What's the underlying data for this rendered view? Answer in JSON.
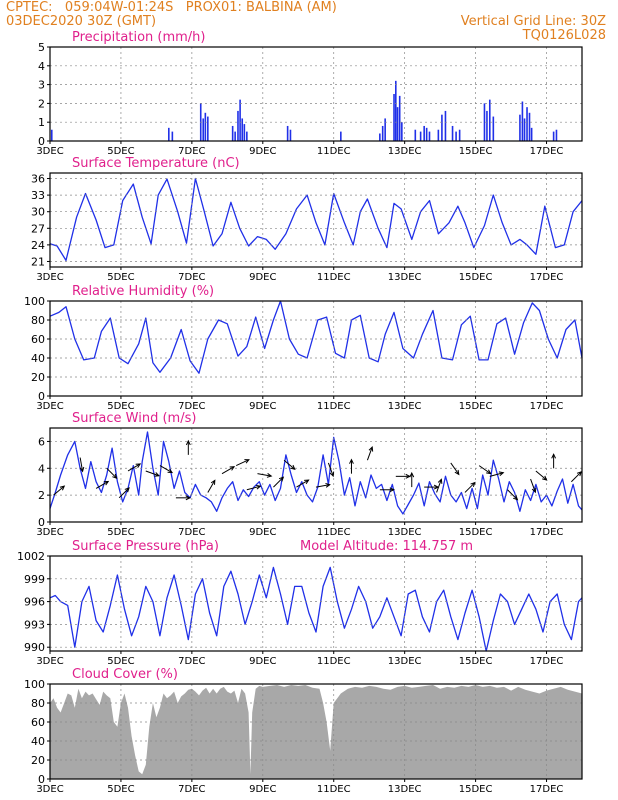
{
  "header": {
    "line1_left": "CPTEC:   059:04W-01:24S   PROX01: BALBINA (AM)",
    "line2_left": "03DEC2020 30Z (GMT)",
    "line2_right": "Vertical Grid Line: 30Z",
    "line3_right": "TQ0126L028"
  },
  "colors": {
    "header": "#e08020",
    "title": "#e0208c",
    "series": "#2030e8",
    "cloud": "#a8a8a8",
    "grid": "#888888"
  },
  "x_axis": {
    "day_start": 3,
    "day_end": 18,
    "tick_labels": [
      "3DEC",
      "5DEC",
      "7DEC",
      "9DEC",
      "11DEC",
      "13DEC",
      "15DEC",
      "17DEC"
    ],
    "tick_days": [
      3,
      5,
      7,
      9,
      11,
      13,
      15,
      17
    ]
  },
  "chart_data": [
    {
      "id": "precip",
      "type": "bar",
      "title": "Precipitation (mm/h)",
      "ylim": [
        0,
        5
      ],
      "yticks": [
        0,
        1,
        2,
        3,
        4,
        5
      ],
      "x": [
        3.05,
        6.35,
        6.45,
        7.25,
        7.32,
        7.38,
        7.45,
        8.15,
        8.22,
        8.3,
        8.36,
        8.42,
        8.48,
        8.55,
        9.7,
        9.78,
        11.2,
        12.3,
        12.38,
        12.45,
        12.7,
        12.75,
        12.8,
        12.86,
        12.92,
        13.3,
        13.45,
        13.55,
        13.62,
        13.7,
        13.95,
        14.05,
        14.15,
        14.35,
        14.45,
        14.55,
        15.25,
        15.32,
        15.4,
        15.5,
        16.25,
        16.32,
        16.38,
        16.45,
        16.52,
        16.58,
        17.2,
        17.28
      ],
      "values": [
        0.6,
        0.7,
        0.5,
        2.0,
        1.2,
        1.5,
        1.3,
        0.8,
        0.5,
        1.6,
        2.2,
        1.2,
        0.9,
        0.5,
        0.8,
        0.6,
        0.5,
        0.4,
        0.8,
        1.2,
        2.5,
        3.2,
        1.8,
        2.4,
        1.0,
        0.6,
        0.5,
        0.8,
        0.7,
        0.5,
        0.6,
        1.4,
        1.6,
        0.8,
        0.5,
        0.6,
        2.0,
        1.6,
        2.2,
        1.3,
        1.4,
        2.1,
        1.2,
        1.8,
        1.5,
        0.7,
        0.5,
        0.6
      ]
    },
    {
      "id": "temp",
      "type": "line",
      "title": "Surface Temperature (nC)",
      "ylim": [
        20,
        37
      ],
      "yticks": [
        21,
        24,
        27,
        30,
        33,
        36
      ],
      "x": [
        3.0,
        3.2,
        3.45,
        3.75,
        4.0,
        4.3,
        4.55,
        4.8,
        5.05,
        5.35,
        5.6,
        5.85,
        6.05,
        6.3,
        6.6,
        6.85,
        7.1,
        7.35,
        7.6,
        7.85,
        8.1,
        8.35,
        8.6,
        8.85,
        9.1,
        9.35,
        9.65,
        9.95,
        10.25,
        10.5,
        10.75,
        11.0,
        11.3,
        11.55,
        11.75,
        11.95,
        12.25,
        12.5,
        12.7,
        12.9,
        13.2,
        13.45,
        13.7,
        13.95,
        14.25,
        14.5,
        14.7,
        14.95,
        15.25,
        15.5,
        15.75,
        16.0,
        16.25,
        16.45,
        16.7,
        16.95,
        17.25,
        17.5,
        17.75,
        18.0
      ],
      "values": [
        24.2,
        23.8,
        21.2,
        29.0,
        33.3,
        28.5,
        23.5,
        24.0,
        32.0,
        35.0,
        29.0,
        24.2,
        33.0,
        35.9,
        30.0,
        24.3,
        36.0,
        30.0,
        23.8,
        26.0,
        31.7,
        27.0,
        23.8,
        25.5,
        25.0,
        23.2,
        26.0,
        30.5,
        33.0,
        28.0,
        24.0,
        33.3,
        28.0,
        24.0,
        30.0,
        32.3,
        27.0,
        23.5,
        31.5,
        30.5,
        25.0,
        30.0,
        32.0,
        26.0,
        28.0,
        31.0,
        28.0,
        23.5,
        27.5,
        33.0,
        28.0,
        24.0,
        25.0,
        24.0,
        22.3,
        31.0,
        23.5,
        24.0,
        30.0,
        32.0
      ]
    },
    {
      "id": "rh",
      "type": "line",
      "title": "Relative Humidity (%)",
      "ylim": [
        0,
        100
      ],
      "yticks": [
        0,
        20,
        40,
        60,
        80,
        100
      ],
      "x": [
        3.0,
        3.25,
        3.45,
        3.7,
        3.95,
        4.25,
        4.45,
        4.7,
        4.95,
        5.2,
        5.5,
        5.7,
        5.9,
        6.1,
        6.4,
        6.7,
        6.95,
        7.2,
        7.45,
        7.75,
        8.0,
        8.3,
        8.55,
        8.8,
        9.05,
        9.3,
        9.5,
        9.75,
        10.0,
        10.25,
        10.55,
        10.8,
        11.05,
        11.3,
        11.5,
        11.75,
        12.0,
        12.25,
        12.45,
        12.7,
        12.95,
        13.25,
        13.5,
        13.8,
        14.05,
        14.35,
        14.6,
        14.85,
        15.1,
        15.35,
        15.6,
        15.85,
        16.1,
        16.35,
        16.6,
        16.8,
        17.05,
        17.3,
        17.55,
        17.8,
        18.0
      ],
      "values": [
        84,
        88,
        94,
        60,
        38,
        40,
        68,
        82,
        40,
        34,
        55,
        82,
        35,
        25,
        40,
        70,
        37,
        24,
        60,
        80,
        76,
        42,
        52,
        83,
        50,
        80,
        100,
        60,
        44,
        40,
        80,
        83,
        45,
        40,
        80,
        85,
        40,
        36,
        65,
        88,
        50,
        40,
        65,
        90,
        40,
        38,
        75,
        84,
        38,
        38,
        76,
        82,
        44,
        77,
        98,
        90,
        60,
        40,
        70,
        80,
        40
      ]
    },
    {
      "id": "wind",
      "type": "line",
      "title": "Surface Wind (m/s)",
      "ylim": [
        0,
        7
      ],
      "yticks": [
        0,
        2,
        4,
        6
      ],
      "x": [
        3.0,
        3.15,
        3.3,
        3.5,
        3.7,
        3.85,
        4.0,
        4.15,
        4.3,
        4.45,
        4.6,
        4.75,
        4.9,
        5.05,
        5.2,
        5.35,
        5.5,
        5.6,
        5.75,
        5.9,
        6.05,
        6.2,
        6.35,
        6.5,
        6.65,
        6.8,
        6.95,
        7.1,
        7.25,
        7.4,
        7.55,
        7.7,
        7.85,
        8.0,
        8.15,
        8.3,
        8.45,
        8.6,
        8.75,
        8.9,
        9.05,
        9.2,
        9.35,
        9.5,
        9.65,
        9.8,
        9.95,
        10.1,
        10.25,
        10.4,
        10.55,
        10.7,
        10.85,
        11.0,
        11.15,
        11.3,
        11.45,
        11.6,
        11.75,
        11.9,
        12.05,
        12.2,
        12.35,
        12.5,
        12.65,
        12.8,
        12.95,
        13.1,
        13.25,
        13.4,
        13.55,
        13.7,
        13.85,
        14.0,
        14.15,
        14.3,
        14.45,
        14.6,
        14.75,
        14.9,
        15.05,
        15.2,
        15.35,
        15.5,
        15.65,
        15.8,
        15.95,
        16.1,
        16.25,
        16.4,
        16.55,
        16.7,
        16.85,
        17.0,
        17.15,
        17.3,
        17.45,
        17.6,
        17.75,
        17.9,
        18.0
      ],
      "values": [
        1.0,
        2.2,
        3.5,
        5.0,
        6.0,
        4.0,
        2.5,
        4.5,
        3.0,
        2.2,
        3.5,
        5.5,
        3.0,
        1.5,
        2.5,
        4.2,
        2.0,
        4.5,
        6.7,
        4.0,
        2.0,
        6.0,
        4.5,
        2.5,
        3.8,
        2.2,
        1.8,
        2.8,
        2.0,
        1.8,
        1.5,
        0.8,
        1.8,
        2.5,
        3.0,
        1.6,
        2.4,
        1.9,
        2.6,
        3.0,
        2.0,
        2.8,
        1.6,
        2.5,
        5.0,
        3.5,
        2.2,
        3.0,
        2.0,
        1.5,
        2.6,
        5.0,
        2.8,
        6.3,
        4.5,
        2.0,
        3.3,
        1.2,
        3.0,
        1.8,
        3.5,
        2.5,
        2.8,
        1.6,
        2.8,
        1.2,
        0.6,
        1.3,
        2.0,
        2.9,
        1.2,
        3.0,
        2.1,
        1.5,
        3.4,
        2.0,
        1.5,
        2.2,
        1.0,
        2.5,
        1.0,
        3.5,
        2.0,
        4.6,
        3.2,
        1.5,
        3.0,
        2.2,
        0.8,
        2.4,
        1.6,
        2.8,
        1.5,
        2.0,
        1.2,
        2.3,
        3.2,
        1.4,
        2.8,
        1.2,
        0.9
      ],
      "arrows": [
        {
          "day": 3.1,
          "speed": 2.0,
          "dir_deg": 50
        },
        {
          "day": 3.85,
          "speed": 4.8,
          "dir_deg": 170
        },
        {
          "day": 4.3,
          "speed": 2.5,
          "dir_deg": 60
        },
        {
          "day": 4.6,
          "speed": 4.0,
          "dir_deg": 135
        },
        {
          "day": 4.95,
          "speed": 1.8,
          "dir_deg": 45
        },
        {
          "day": 5.2,
          "speed": 3.8,
          "dir_deg": 60
        },
        {
          "day": 5.7,
          "speed": 3.8,
          "dir_deg": 110
        },
        {
          "day": 6.1,
          "speed": 4.2,
          "dir_deg": 120
        },
        {
          "day": 6.55,
          "speed": 1.8,
          "dir_deg": 90
        },
        {
          "day": 6.9,
          "speed": 5.0,
          "dir_deg": 0
        },
        {
          "day": 7.45,
          "speed": 2.2,
          "dir_deg": 30
        },
        {
          "day": 7.85,
          "speed": 3.6,
          "dir_deg": 60
        },
        {
          "day": 8.25,
          "speed": 4.2,
          "dir_deg": 65
        },
        {
          "day": 8.55,
          "speed": 2.4,
          "dir_deg": 75
        },
        {
          "day": 8.85,
          "speed": 3.6,
          "dir_deg": 100
        },
        {
          "day": 9.3,
          "speed": 2.6,
          "dir_deg": 45
        },
        {
          "day": 9.6,
          "speed": 4.6,
          "dir_deg": 130
        },
        {
          "day": 9.95,
          "speed": 2.6,
          "dir_deg": 60
        },
        {
          "day": 10.5,
          "speed": 2.6,
          "dir_deg": 80
        },
        {
          "day": 10.85,
          "speed": 4.4,
          "dir_deg": 160
        },
        {
          "day": 11.5,
          "speed": 3.6,
          "dir_deg": 0
        },
        {
          "day": 11.95,
          "speed": 4.6,
          "dir_deg": 20
        },
        {
          "day": 12.3,
          "speed": 2.4,
          "dir_deg": 90
        },
        {
          "day": 12.75,
          "speed": 3.4,
          "dir_deg": 90
        },
        {
          "day": 13.2,
          "speed": 2.6,
          "dir_deg": 0
        },
        {
          "day": 13.55,
          "speed": 2.6,
          "dir_deg": 90
        },
        {
          "day": 13.9,
          "speed": 2.2,
          "dir_deg": 20
        },
        {
          "day": 14.3,
          "speed": 4.4,
          "dir_deg": 145
        },
        {
          "day": 14.7,
          "speed": 2.2,
          "dir_deg": 45
        },
        {
          "day": 15.1,
          "speed": 4.2,
          "dir_deg": 125
        },
        {
          "day": 15.4,
          "speed": 3.4,
          "dir_deg": 75
        },
        {
          "day": 15.9,
          "speed": 2.4,
          "dir_deg": 135
        },
        {
          "day": 16.55,
          "speed": 3.2,
          "dir_deg": 160
        },
        {
          "day": 16.7,
          "speed": 3.8,
          "dir_deg": 130
        },
        {
          "day": 17.2,
          "speed": 4.0,
          "dir_deg": 0
        },
        {
          "day": 17.7,
          "speed": 3.0,
          "dir_deg": 45
        }
      ]
    },
    {
      "id": "pressure",
      "type": "line",
      "title": "Surface Pressure (hPa)",
      "ylim": [
        989.5,
        1002
      ],
      "yticks": [
        990,
        993,
        996,
        999,
        1002
      ],
      "annotation": "Model Altitude: 114.757 m",
      "x": [
        3.0,
        3.15,
        3.3,
        3.5,
        3.7,
        3.9,
        4.1,
        4.3,
        4.5,
        4.7,
        4.9,
        5.1,
        5.3,
        5.5,
        5.7,
        5.9,
        6.1,
        6.3,
        6.5,
        6.7,
        6.9,
        7.1,
        7.3,
        7.5,
        7.7,
        7.9,
        8.1,
        8.3,
        8.5,
        8.7,
        8.9,
        9.1,
        9.3,
        9.5,
        9.7,
        9.9,
        10.1,
        10.3,
        10.5,
        10.7,
        10.9,
        11.1,
        11.3,
        11.5,
        11.7,
        11.9,
        12.1,
        12.3,
        12.5,
        12.7,
        12.9,
        13.1,
        13.3,
        13.5,
        13.7,
        13.9,
        14.1,
        14.3,
        14.5,
        14.7,
        14.9,
        15.1,
        15.3,
        15.5,
        15.7,
        15.9,
        16.1,
        16.3,
        16.5,
        16.7,
        16.9,
        17.1,
        17.3,
        17.5,
        17.7,
        17.9,
        18.0
      ],
      "values": [
        996.5,
        996.8,
        996.0,
        995.5,
        990.0,
        996.0,
        998.0,
        993.5,
        992.0,
        995.5,
        999.5,
        995.0,
        991.5,
        994.0,
        998.0,
        996.0,
        991.5,
        996.5,
        999.5,
        995.5,
        991.0,
        997.0,
        999.0,
        994.5,
        991.5,
        998.0,
        1000.0,
        997.0,
        993.0,
        996.0,
        999.5,
        996.5,
        1000.5,
        997.0,
        993.0,
        998.0,
        998.0,
        994.5,
        992.0,
        998.0,
        1000.5,
        996.0,
        992.5,
        995.0,
        998.0,
        996.0,
        992.5,
        994.0,
        996.5,
        994.0,
        991.5,
        997.0,
        997.5,
        994.0,
        992.0,
        996.0,
        997.5,
        994.0,
        991.0,
        994.5,
        997.5,
        994.0,
        989.5,
        993.5,
        997.0,
        996.0,
        993.0,
        995.0,
        997.0,
        995.0,
        992.0,
        996.0,
        997.0,
        993.0,
        991.0,
        996.0,
        996.5
      ]
    },
    {
      "id": "cloud",
      "type": "area",
      "title": "Cloud Cover (%)",
      "ylim": [
        0,
        100
      ],
      "yticks": [
        0,
        20,
        40,
        60,
        80,
        100
      ],
      "x": [
        3.0,
        3.1,
        3.2,
        3.3,
        3.4,
        3.5,
        3.6,
        3.7,
        3.8,
        3.9,
        4.0,
        4.1,
        4.2,
        4.3,
        4.4,
        4.5,
        4.6,
        4.7,
        4.8,
        4.9,
        5.0,
        5.1,
        5.2,
        5.3,
        5.4,
        5.5,
        5.6,
        5.7,
        5.8,
        5.9,
        6.0,
        6.1,
        6.2,
        6.3,
        6.4,
        6.5,
        6.6,
        6.7,
        6.8,
        6.9,
        7.0,
        7.1,
        7.2,
        7.3,
        7.4,
        7.5,
        7.6,
        7.7,
        7.8,
        7.9,
        8.0,
        8.1,
        8.2,
        8.3,
        8.4,
        8.5,
        8.6,
        8.65,
        8.7,
        8.8,
        8.9,
        9.0,
        9.2,
        9.4,
        9.6,
        9.8,
        10.0,
        10.2,
        10.4,
        10.6,
        10.7,
        10.8,
        10.9,
        11.0,
        11.1,
        11.2,
        11.4,
        11.6,
        11.8,
        12.0,
        12.2,
        12.4,
        12.6,
        12.8,
        13.0,
        13.2,
        13.4,
        13.6,
        13.8,
        14.0,
        14.2,
        14.4,
        14.6,
        14.8,
        15.0,
        15.2,
        15.4,
        15.6,
        15.8,
        16.0,
        16.2,
        16.4,
        16.6,
        16.8,
        17.0,
        17.2,
        17.4,
        17.6,
        17.8,
        18.0
      ],
      "values": [
        80,
        85,
        75,
        70,
        80,
        90,
        88,
        75,
        95,
        85,
        92,
        88,
        90,
        84,
        78,
        92,
        88,
        85,
        60,
        55,
        80,
        90,
        75,
        45,
        25,
        8,
        5,
        15,
        55,
        80,
        65,
        75,
        90,
        85,
        88,
        92,
        80,
        87,
        90,
        94,
        95,
        92,
        88,
        93,
        96,
        90,
        95,
        90,
        95,
        97,
        92,
        90,
        93,
        80,
        95,
        90,
        70,
        5,
        70,
        95,
        98,
        97,
        98,
        99,
        97,
        99,
        98,
        99,
        96,
        95,
        80,
        60,
        30,
        80,
        85,
        90,
        95,
        97,
        96,
        98,
        97,
        95,
        94,
        97,
        98,
        96,
        97,
        98,
        99,
        95,
        97,
        96,
        98,
        97,
        99,
        97,
        98,
        96,
        97,
        93,
        97,
        94,
        92,
        90,
        93,
        95,
        97,
        94,
        92,
        90
      ]
    }
  ]
}
